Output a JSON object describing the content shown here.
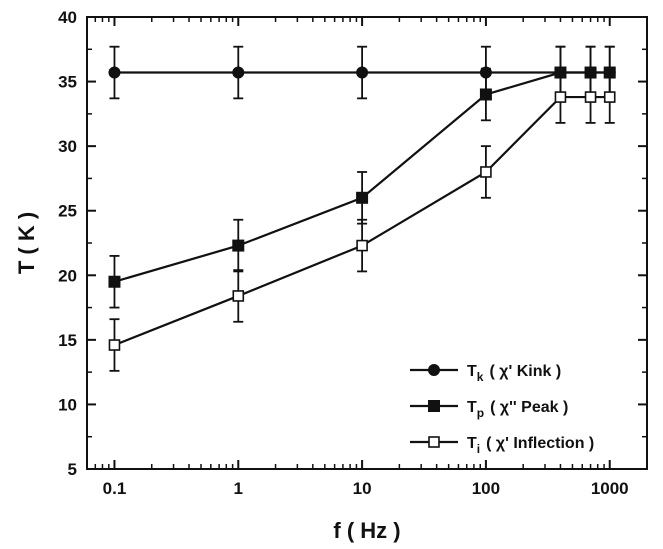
{
  "chart_data": {
    "type": "line",
    "x_scale": "log",
    "xlim": [
      0.06,
      2000
    ],
    "ylim": [
      5,
      40
    ],
    "xlabel": "f ( Hz )",
    "ylabel": "T ( K )",
    "x_ticks": [
      {
        "value": 0.1,
        "label": "0.1"
      },
      {
        "value": 1,
        "label": "1"
      },
      {
        "value": 10,
        "label": "10"
      },
      {
        "value": 100,
        "label": "100"
      },
      {
        "value": 1000,
        "label": "1000"
      }
    ],
    "y_ticks": [
      {
        "value": 5,
        "label": "5"
      },
      {
        "value": 10,
        "label": "10"
      },
      {
        "value": 15,
        "label": "15"
      },
      {
        "value": 20,
        "label": "20"
      },
      {
        "value": 25,
        "label": "25"
      },
      {
        "value": 30,
        "label": "30"
      },
      {
        "value": 35,
        "label": "35"
      },
      {
        "value": 40,
        "label": "40"
      }
    ],
    "grid": false,
    "legend_position": "bottom-right",
    "series": [
      {
        "marker": "circle",
        "color": "#111111",
        "legend": {
          "symbol": "T",
          "sub": "k",
          "desc": "( χ' Kink )"
        },
        "points": [
          {
            "x": 0.1,
            "y": 35.7,
            "err": 2.0
          },
          {
            "x": 1,
            "y": 35.7,
            "err": 2.0
          },
          {
            "x": 10,
            "y": 35.7,
            "err": 2.0
          },
          {
            "x": 100,
            "y": 35.7,
            "err": 2.0
          },
          {
            "x": 400,
            "y": 35.7,
            "err": 2.0
          },
          {
            "x": 700,
            "y": 35.7,
            "err": 2.0
          },
          {
            "x": 1000,
            "y": 35.7,
            "err": 2.0
          }
        ]
      },
      {
        "marker": "square-filled",
        "color": "#111111",
        "legend": {
          "symbol": "T",
          "sub": "p",
          "desc": "( χ'' Peak )"
        },
        "points": [
          {
            "x": 0.1,
            "y": 19.5,
            "err": 2.0
          },
          {
            "x": 1,
            "y": 22.3,
            "err": 2.0
          },
          {
            "x": 10,
            "y": 26.0,
            "err": 2.0
          },
          {
            "x": 100,
            "y": 34.0,
            "err": 2.0
          },
          {
            "x": 400,
            "y": 35.7,
            "err": 2.0
          },
          {
            "x": 700,
            "y": 35.7,
            "err": 2.0
          },
          {
            "x": 1000,
            "y": 35.7,
            "err": 2.0
          }
        ]
      },
      {
        "marker": "square-open",
        "color": "#111111",
        "legend": {
          "symbol": "T",
          "sub": "i",
          "desc": "( χ' Inflection )"
        },
        "points": [
          {
            "x": 0.1,
            "y": 14.6,
            "err": 2.0
          },
          {
            "x": 1,
            "y": 18.4,
            "err": 2.0
          },
          {
            "x": 10,
            "y": 22.3,
            "err": 2.0
          },
          {
            "x": 100,
            "y": 28.0,
            "err": 2.0
          },
          {
            "x": 400,
            "y": 33.8,
            "err": 2.0
          },
          {
            "x": 700,
            "y": 33.8,
            "err": 2.0
          },
          {
            "x": 1000,
            "y": 33.8,
            "err": 2.0
          }
        ]
      }
    ]
  }
}
